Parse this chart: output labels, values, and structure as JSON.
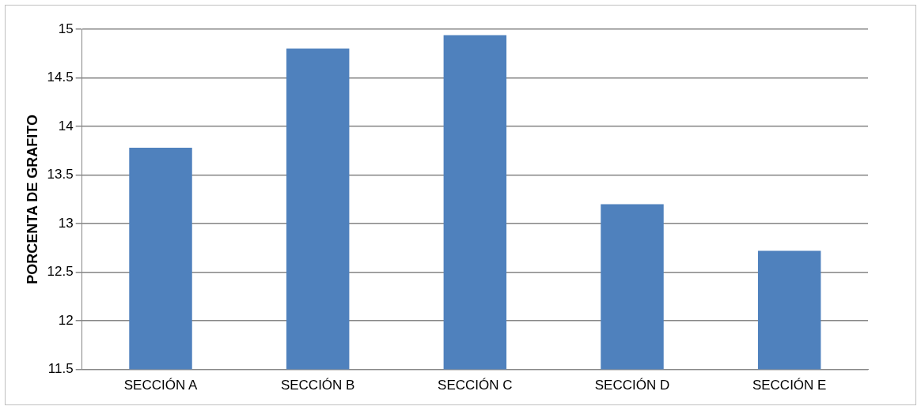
{
  "chart_data": {
    "type": "bar",
    "ylabel": "PORCENTA DE GRAFITO",
    "categories": [
      "SECCIÓN A",
      "SECCIÓN B",
      "SECCIÓN C",
      "SECCIÓN D",
      "SECCIÓN E"
    ],
    "values": [
      13.78,
      14.8,
      14.94,
      13.2,
      12.72
    ],
    "color": "#4f81bd",
    "ylim": [
      11.5,
      15
    ],
    "yticks": [
      11.5,
      12,
      12.5,
      13,
      13.5,
      14,
      14.5,
      15
    ],
    "grid": "y",
    "legend": false
  }
}
